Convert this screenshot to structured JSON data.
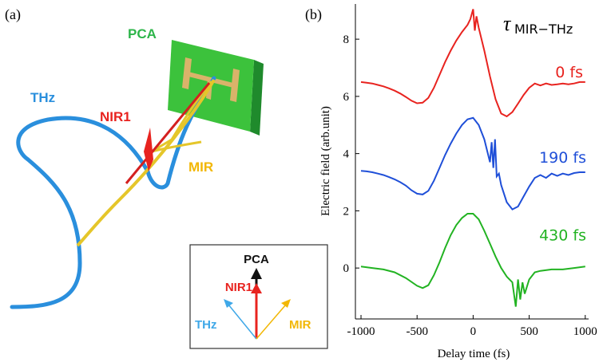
{
  "panel_a": {
    "label": "(a)",
    "labels": {
      "pca": "PCA",
      "thz": "THz",
      "nir1": "NIR1",
      "mir": "MIR"
    },
    "inset": {
      "pca": "PCA",
      "nir1": "NIR1",
      "thz": "THz",
      "mir": "MIR"
    }
  },
  "chart_data": {
    "type": "line",
    "panel_label": "(b)",
    "annotation": {
      "symbol": "τ",
      "subscript": "MIR−THz"
    },
    "x_label": "Delay time (fs)",
    "y_label": "Electric field (arb.unit)",
    "xlim": [
      -1050,
      1030
    ],
    "ylim": [
      -1.78,
      9.23
    ],
    "xticks": [
      -1000,
      -500,
      0,
      500,
      1000
    ],
    "yticks": [
      0,
      2,
      4,
      6,
      8
    ],
    "series": [
      {
        "name": "0 fs",
        "color": "#e8231f",
        "x": [
          -1000,
          -950,
          -900,
          -850,
          -800,
          -750,
          -700,
          -650,
          -600,
          -550,
          -500,
          -450,
          -400,
          -350,
          -300,
          -250,
          -200,
          -150,
          -100,
          -50,
          -25,
          0,
          15,
          30,
          50,
          100,
          150,
          200,
          250,
          300,
          350,
          400,
          450,
          500,
          550,
          600,
          650,
          700,
          750,
          800,
          850,
          900,
          950,
          1000
        ],
        "values": [
          6.5,
          6.48,
          6.45,
          6.4,
          6.35,
          6.28,
          6.2,
          6.1,
          5.98,
          5.85,
          5.76,
          5.78,
          5.95,
          6.3,
          6.75,
          7.2,
          7.6,
          7.95,
          8.25,
          8.5,
          8.7,
          9.05,
          8.3,
          8.8,
          8.4,
          7.6,
          6.7,
          5.9,
          5.4,
          5.3,
          5.45,
          5.75,
          6.05,
          6.3,
          6.45,
          6.38,
          6.45,
          6.4,
          6.42,
          6.45,
          6.42,
          6.45,
          6.5,
          6.5
        ]
      },
      {
        "name": "190 fs",
        "color": "#1f4fd8",
        "x": [
          -1000,
          -950,
          -900,
          -850,
          -800,
          -750,
          -700,
          -650,
          -600,
          -550,
          -500,
          -450,
          -400,
          -350,
          -300,
          -250,
          -200,
          -150,
          -100,
          -50,
          0,
          50,
          100,
          150,
          165,
          180,
          195,
          210,
          230,
          250,
          300,
          350,
          400,
          450,
          500,
          550,
          600,
          650,
          700,
          750,
          800,
          850,
          900,
          950,
          1000
        ],
        "values": [
          3.4,
          3.38,
          3.35,
          3.3,
          3.25,
          3.18,
          3.1,
          3.0,
          2.88,
          2.72,
          2.6,
          2.57,
          2.7,
          3.05,
          3.5,
          3.95,
          4.35,
          4.7,
          5.0,
          5.2,
          5.25,
          5.0,
          4.5,
          3.7,
          4.4,
          3.5,
          4.5,
          3.2,
          3.3,
          2.9,
          2.3,
          2.05,
          2.15,
          2.5,
          2.85,
          3.15,
          3.25,
          3.15,
          3.3,
          3.22,
          3.3,
          3.25,
          3.32,
          3.35,
          3.35
        ]
      },
      {
        "name": "430 fs",
        "color": "#22b322",
        "x": [
          -1000,
          -900,
          -800,
          -700,
          -600,
          -500,
          -450,
          -400,
          -350,
          -300,
          -250,
          -200,
          -150,
          -100,
          -50,
          0,
          50,
          100,
          150,
          200,
          250,
          300,
          350,
          380,
          400,
          420,
          440,
          460,
          500,
          550,
          600,
          700,
          800,
          900,
          1000
        ],
        "values": [
          0.05,
          0.0,
          -0.05,
          -0.15,
          -0.35,
          -0.62,
          -0.7,
          -0.6,
          -0.25,
          0.2,
          0.7,
          1.15,
          1.5,
          1.75,
          1.9,
          1.9,
          1.7,
          1.3,
          0.85,
          0.4,
          0.0,
          -0.3,
          -0.5,
          -1.35,
          -0.4,
          -1.1,
          -0.5,
          -0.9,
          -0.4,
          -0.15,
          -0.1,
          -0.05,
          -0.05,
          0.0,
          0.05
        ]
      }
    ]
  }
}
